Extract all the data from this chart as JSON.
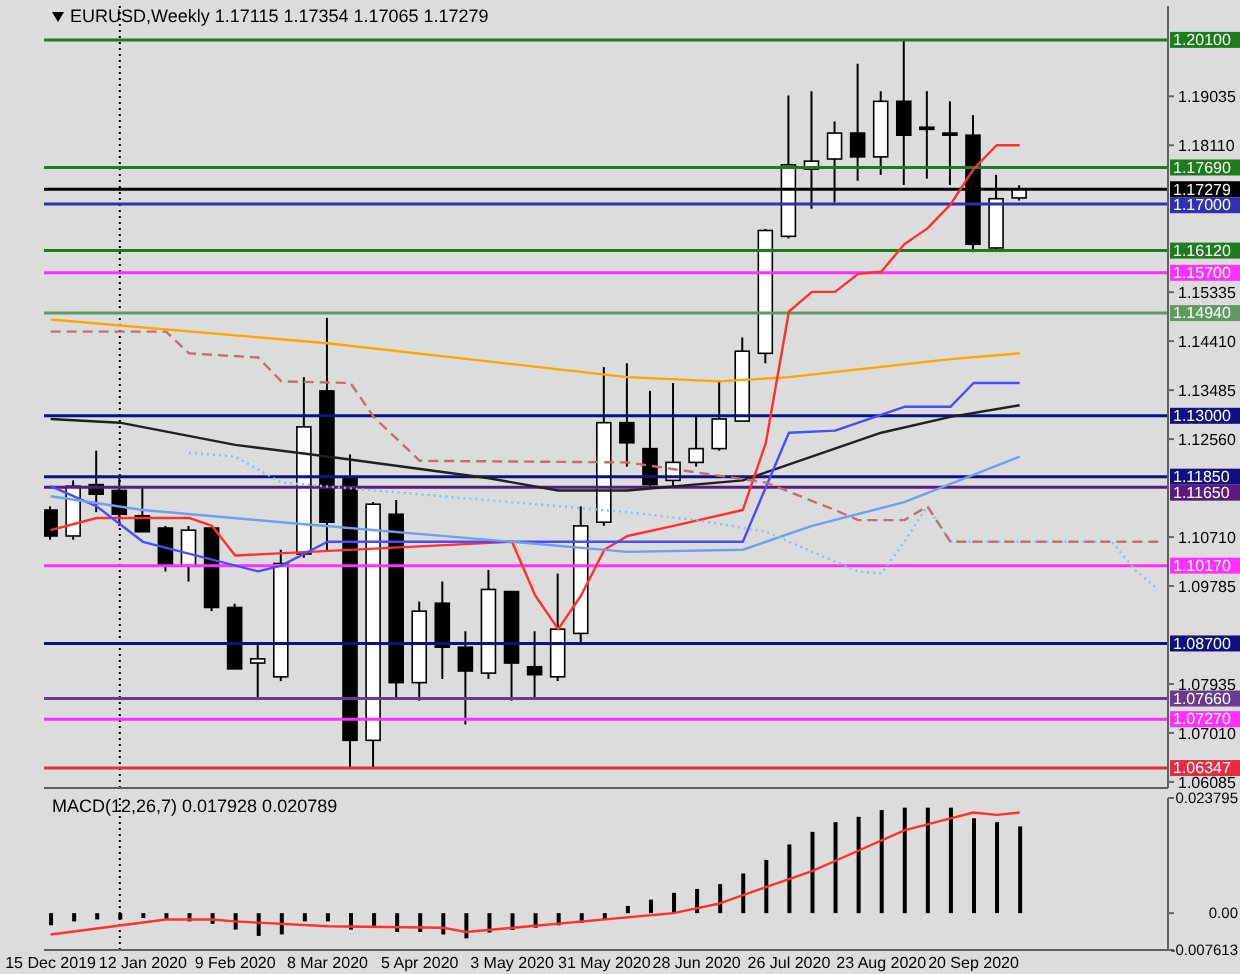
{
  "chart_data": [
    {
      "type": "candlestick",
      "title": "EURUSD,Weekly  1.17115 1.17354 1.17065 1.17279",
      "x": [
        "2019-12-15",
        "2019-12-22",
        "2019-12-29",
        "2020-01-05",
        "2020-01-12",
        "2020-01-19",
        "2020-01-26",
        "2020-02-02",
        "2020-02-09",
        "2020-02-16",
        "2020-02-23",
        "2020-03-01",
        "2020-03-08",
        "2020-03-15",
        "2020-03-22",
        "2020-03-29",
        "2020-04-05",
        "2020-04-12",
        "2020-04-19",
        "2020-04-26",
        "2020-05-03",
        "2020-05-10",
        "2020-05-17",
        "2020-05-24",
        "2020-05-31",
        "2020-06-07",
        "2020-06-14",
        "2020-06-21",
        "2020-06-28",
        "2020-07-05",
        "2020-07-12",
        "2020-07-19",
        "2020-07-26",
        "2020-08-02",
        "2020-08-09",
        "2020-08-16",
        "2020-08-23",
        "2020-08-30",
        "2020-09-06",
        "2020-09-13",
        "2020-09-20",
        "2020-09-27",
        "2020-10-04"
      ],
      "ohlc": [
        [
          1.1122,
          1.1129,
          1.1066,
          1.1073
        ],
        [
          1.1073,
          1.1178,
          1.1066,
          1.1167
        ],
        [
          1.117,
          1.1234,
          1.1118,
          1.1152
        ],
        [
          1.1159,
          1.1185,
          1.1092,
          1.1114
        ],
        [
          1.1111,
          1.1167,
          1.1081,
          1.1081
        ],
        [
          1.1088,
          1.1092,
          1.1006,
          1.1017
        ],
        [
          1.1017,
          1.1092,
          1.0987,
          1.1084
        ],
        [
          1.1088,
          1.1088,
          1.0931,
          1.0938
        ],
        [
          1.0938,
          1.0945,
          1.0822,
          1.0822
        ],
        [
          1.0833,
          1.0867,
          1.0766,
          1.0841
        ],
        [
          1.0807,
          1.1047,
          1.0799,
          1.1021
        ],
        [
          1.1039,
          1.1373,
          1.1032,
          1.1279
        ],
        [
          1.1347,
          1.1485,
          1.1043,
          1.1099
        ],
        [
          1.1182,
          1.1227,
          1.0636,
          1.0687
        ],
        [
          1.0687,
          1.1137,
          1.0636,
          1.1133
        ],
        [
          1.1114,
          1.1141,
          1.0766,
          1.0796
        ],
        [
          1.0796,
          1.0949,
          1.0762,
          1.0931
        ],
        [
          1.0946,
          1.0987,
          1.0803,
          1.0863
        ],
        [
          1.0863,
          1.0893,
          1.0717,
          1.0818
        ],
        [
          1.0814,
          1.1009,
          1.0803,
          1.0972
        ],
        [
          1.0968,
          1.0968,
          1.0762,
          1.0833
        ],
        [
          1.0826,
          1.0893,
          1.0766,
          1.0811
        ],
        [
          1.0807,
          1.1002,
          1.0799,
          1.0897
        ],
        [
          1.0889,
          1.1129,
          1.0867,
          1.1092
        ],
        [
          1.1099,
          1.1392,
          1.1092,
          1.1287
        ],
        [
          1.1287,
          1.1399,
          1.1204,
          1.1249
        ],
        [
          1.1238,
          1.1347,
          1.1167,
          1.117
        ],
        [
          1.1178,
          1.1362,
          1.1167,
          1.1212
        ],
        [
          1.1212,
          1.1298,
          1.1204,
          1.1238
        ],
        [
          1.1238,
          1.1365,
          1.1234,
          1.1294
        ],
        [
          1.129,
          1.1448,
          1.129,
          1.1422
        ],
        [
          1.1418,
          1.1653,
          1.1399,
          1.165
        ],
        [
          1.1639,
          1.1905,
          1.1635,
          1.1774
        ],
        [
          1.1766,
          1.1913,
          1.1691,
          1.1781
        ],
        [
          1.1785,
          1.1856,
          1.1703,
          1.1834
        ],
        [
          1.1834,
          1.1965,
          1.1744,
          1.1789
        ],
        [
          1.1789,
          1.1913,
          1.1755,
          1.1894
        ],
        [
          1.1894,
          1.201,
          1.1736,
          1.183
        ],
        [
          1.1845,
          1.1913,
          1.1748,
          1.1841
        ],
        [
          1.1834,
          1.1894,
          1.1736,
          1.183
        ],
        [
          1.183,
          1.1868,
          1.1609,
          1.1624
        ],
        [
          1.1617,
          1.1755,
          1.1613,
          1.171
        ],
        [
          1.17115,
          1.17354,
          1.17065,
          1.17279
        ]
      ],
      "series": [
        {
          "type": "line",
          "color": "#ffa500",
          "x": [
            "2019-12-15",
            "2020-03-08",
            "2020-06-07",
            "2020-07-05",
            "2020-07-26",
            "2020-09-13",
            "2020-10-04"
          ],
          "values": [
            1.1482,
            1.1437,
            1.1373,
            1.1365,
            1.1373,
            1.1407,
            1.1418
          ]
        },
        {
          "type": "line",
          "color": "#202020",
          "x": [
            "2019-12-15",
            "2020-01-05",
            "2020-02-09",
            "2020-03-08",
            "2020-04-26",
            "2020-05-17",
            "2020-06-07",
            "2020-07-12",
            "2020-08-23",
            "2020-09-13",
            "2020-10-04"
          ],
          "values": [
            1.1294,
            1.1287,
            1.1245,
            1.1223,
            1.1182,
            1.1159,
            1.1159,
            1.1178,
            1.1268,
            1.1298,
            1.132
          ]
        },
        {
          "type": "line",
          "color": "#ff3030",
          "x": [
            "2019-12-15",
            "2019-12-29",
            "2020-01-26",
            "2020-02-02",
            "2020-02-09",
            "2020-05-03",
            "2020-05-10",
            "2020-05-17",
            "2020-05-24",
            "2020-05-31",
            "2020-06-07",
            "2020-06-21",
            "2020-07-12",
            "2020-07-19",
            "2020-07-26",
            "2020-08-02",
            "2020-08-09",
            "2020-08-16",
            "2020-08-23",
            "2020-08-30",
            "2020-09-06",
            "2020-09-13",
            "2020-09-20",
            "2020-09-27",
            "2020-10-04"
          ],
          "values": [
            1.1084,
            1.1107,
            1.1107,
            1.1092,
            1.1036,
            1.1062,
            1.0961,
            1.0897,
            1.0961,
            1.1047,
            1.1073,
            1.1092,
            1.1122,
            1.1249,
            1.1497,
            1.1534,
            1.1534,
            1.1568,
            1.1572,
            1.1624,
            1.1654,
            1.1699,
            1.1766,
            1.1811,
            1.1811
          ]
        },
        {
          "type": "line",
          "color": "#4b4bff",
          "x": [
            "2019-12-15",
            "2019-12-29",
            "2020-01-12",
            "2020-02-16",
            "2020-02-23",
            "2020-03-08",
            "2020-07-12",
            "2020-07-26",
            "2020-08-09",
            "2020-08-30",
            "2020-09-13",
            "2020-09-20",
            "2020-10-04"
          ],
          "values": [
            1.1167,
            1.1129,
            1.1062,
            1.1006,
            1.1017,
            1.1062,
            1.1062,
            1.1268,
            1.1272,
            1.1317,
            1.1317,
            1.1362,
            1.1362
          ]
        },
        {
          "type": "line",
          "color": "#6f9fef",
          "x": [
            "2019-12-15",
            "2020-01-12",
            "2020-02-23",
            "2020-05-03",
            "2020-06-07",
            "2020-07-12",
            "2020-08-02",
            "2020-08-30",
            "2020-10-04"
          ],
          "values": [
            1.1148,
            1.1122,
            1.1099,
            1.1062,
            1.1043,
            1.1047,
            1.1092,
            1.1137,
            1.1223
          ]
        },
        {
          "type": "line",
          "color": "#87bfef",
          "line_style": "dotted",
          "x": [
            "2020-01-26",
            "2020-02-09",
            "2020-02-23",
            "2020-06-07",
            "2020-06-28",
            "2020-07-19",
            "2020-08-16",
            "2020-08-23",
            "2020-08-30",
            "2020-09-06",
            "2020-09-13",
            "2020-11-01",
            "2020-11-08",
            "2020-11-15"
          ],
          "values": [
            1.123,
            1.1223,
            1.1174,
            1.1118,
            1.1103,
            1.1081,
            1.1006,
            1.1002,
            1.1062,
            1.1129,
            1.1062,
            1.1062,
            1.1009,
            1.0972
          ]
        },
        {
          "type": "line",
          "color": "#c07070",
          "line_style": "dashed",
          "x": [
            "2019-12-15",
            "2020-01-19",
            "2020-01-26",
            "2020-02-16",
            "2020-02-23",
            "2020-03-15",
            "2020-03-22",
            "2020-04-05",
            "2020-06-07",
            "2020-07-19",
            "2020-08-09",
            "2020-08-16",
            "2020-08-30",
            "2020-09-06",
            "2020-09-13",
            "2020-11-15"
          ],
          "values": [
            1.1459,
            1.1459,
            1.1418,
            1.141,
            1.1365,
            1.1362,
            1.1298,
            1.1215,
            1.1212,
            1.1174,
            1.1122,
            1.1103,
            1.1103,
            1.1129,
            1.1062,
            1.1062
          ]
        }
      ],
      "xlim": [
        "2019-12-13",
        "2020-11-18"
      ],
      "ylim": [
        1.0597,
        1.2074
      ],
      "yticks": [
        {
          "value": 1.19035,
          "label": "1.19035"
        },
        {
          "value": 1.1811,
          "label": "1.18110"
        },
        {
          "value": 1.15335,
          "label": "1.15335"
        },
        {
          "value": 1.1441,
          "label": "1.14410"
        },
        {
          "value": 1.13485,
          "label": "1.13485"
        },
        {
          "value": 1.1256,
          "label": "1.12560"
        },
        {
          "value": 1.1071,
          "label": "1.10710"
        },
        {
          "value": 1.09785,
          "label": "1.09785"
        },
        {
          "value": 1.07935,
          "label": "1.07935"
        },
        {
          "value": 1.0701,
          "label": "1.07010"
        },
        {
          "value": 1.06085,
          "label": "1.06085"
        }
      ],
      "tick_labels": "y",
      "ref_lines": [
        {
          "axis": "x",
          "value": "2020-01-05",
          "color": "#000000",
          "line_style": "dotted"
        },
        {
          "axis": "y",
          "value": 1.201,
          "label": "1.20100",
          "color": "#1e7b1e"
        },
        {
          "axis": "y",
          "value": 1.1769,
          "label": "1.17690",
          "color": "#1e7b1e"
        },
        {
          "axis": "y",
          "value": 1.17279,
          "label": "1.17279",
          "color": "#000000"
        },
        {
          "axis": "y",
          "value": 1.17,
          "label": "1.17000",
          "color": "#3030b0"
        },
        {
          "axis": "y",
          "value": 1.1612,
          "label": "1.16120",
          "color": "#1e7b1e"
        },
        {
          "axis": "y",
          "value": 1.157,
          "label": "1.15700",
          "color": "#ff30ff"
        },
        {
          "axis": "y",
          "value": 1.1494,
          "label": "1.14940",
          "color": "#5f9a5f"
        },
        {
          "axis": "y",
          "value": 1.13,
          "label": "1.13000",
          "color": "#101080"
        },
        {
          "axis": "y",
          "value": 1.1185,
          "label": "1.11850",
          "color": "#101080"
        },
        {
          "axis": "y",
          "value": 1.1165,
          "label": "1.11650",
          "color": "#5a1a80"
        },
        {
          "axis": "y",
          "value": 1.1017,
          "label": "1.10170",
          "color": "#ff30ff"
        },
        {
          "axis": "y",
          "value": 1.087,
          "label": "1.08700",
          "color": "#101080"
        },
        {
          "axis": "y",
          "value": 1.0766,
          "label": "1.07660",
          "color": "#6a3a90"
        },
        {
          "axis": "y",
          "value": 1.0727,
          "label": "1.07270",
          "color": "#ff30ff"
        },
        {
          "axis": "y",
          "value": 1.06347,
          "label": "1.06347",
          "color": "#e03040"
        }
      ]
    },
    {
      "type": "bar",
      "title": "MACD(12,26,7) 0.017928 0.020789",
      "x": [
        "2019-12-15",
        "2019-12-22",
        "2019-12-29",
        "2020-01-05",
        "2020-01-12",
        "2020-01-19",
        "2020-01-26",
        "2020-02-02",
        "2020-02-09",
        "2020-02-16",
        "2020-02-23",
        "2020-03-01",
        "2020-03-08",
        "2020-03-15",
        "2020-03-22",
        "2020-03-29",
        "2020-04-05",
        "2020-04-12",
        "2020-04-19",
        "2020-04-26",
        "2020-05-03",
        "2020-05-10",
        "2020-05-17",
        "2020-05-24",
        "2020-05-31",
        "2020-06-07",
        "2020-06-14",
        "2020-06-21",
        "2020-06-28",
        "2020-07-05",
        "2020-07-12",
        "2020-07-19",
        "2020-07-26",
        "2020-08-02",
        "2020-08-09",
        "2020-08-16",
        "2020-08-23",
        "2020-08-30",
        "2020-09-06",
        "2020-09-13",
        "2020-09-20",
        "2020-09-27",
        "2020-10-04"
      ],
      "series": [
        {
          "type": "bar",
          "color": "#000000",
          "values": [
            -0.0025,
            -0.0017,
            -0.0013,
            -0.0013,
            -0.001,
            -0.0013,
            -0.0017,
            -0.0022,
            -0.0034,
            -0.0047,
            -0.0044,
            -0.0017,
            -0.0017,
            -0.0034,
            -0.0027,
            -0.0039,
            -0.0039,
            -0.0044,
            -0.0052,
            -0.004,
            -0.0035,
            -0.003,
            -0.0025,
            -0.002,
            -0.0012,
            0.0015,
            0.0028,
            0.0042,
            0.005,
            0.006,
            0.0082,
            0.011,
            0.0142,
            0.0168,
            0.0188,
            0.0199,
            0.0213,
            0.0218,
            0.0218,
            0.0218,
            0.0196,
            0.0188,
            0.017928
          ]
        },
        {
          "type": "line",
          "color": "#ff3030",
          "x": [
            "2019-12-15",
            "2020-01-19",
            "2020-02-02",
            "2020-02-09",
            "2020-03-08",
            "2020-04-12",
            "2020-04-19",
            "2020-06-21",
            "2020-07-05",
            "2020-07-19",
            "2020-08-02",
            "2020-08-16",
            "2020-08-30",
            "2020-09-13",
            "2020-09-20",
            "2020-09-27",
            "2020-10-04"
          ],
          "values": [
            -0.0044,
            -0.0013,
            -0.0013,
            -0.0017,
            -0.0027,
            -0.003,
            -0.0039,
            0,
            0.002,
            0.0054,
            0.0087,
            0.0129,
            0.0171,
            0.0196,
            0.0208,
            0.0203,
            0.020789
          ]
        }
      ],
      "xlim": [
        "2019-12-13",
        "2020-11-18"
      ],
      "ylim": [
        -0.007613,
        0.023795
      ],
      "yticks": [
        0.023795,
        {
          "value": 0,
          "label": "0.00"
        },
        -0.007613
      ],
      "xticks": [
        {
          "value": "2019-12-15",
          "label": "15 Dec 2019"
        },
        {
          "value": "2020-01-12",
          "label": "12 Jan 2020"
        },
        {
          "value": "2020-02-09",
          "label": "9 Feb 2020"
        },
        {
          "value": "2020-03-08",
          "label": "8 Mar 2020"
        },
        {
          "value": "2020-04-05",
          "label": "5 Apr 2020"
        },
        {
          "value": "2020-05-03",
          "label": "3 May 2020"
        },
        {
          "value": "2020-05-31",
          "label": "31 May 2020"
        },
        {
          "value": "2020-06-28",
          "label": "28 Jun 2020"
        },
        {
          "value": "2020-07-26",
          "label": "26 Jul 2020"
        },
        {
          "value": "2020-08-23",
          "label": "23 Aug 2020"
        },
        {
          "value": "2020-09-20",
          "label": "20 Sep 2020"
        }
      ],
      "ref_lines": [
        {
          "axis": "x",
          "value": "2020-01-05",
          "color": "#000000",
          "line_style": "dotted"
        }
      ]
    }
  ]
}
